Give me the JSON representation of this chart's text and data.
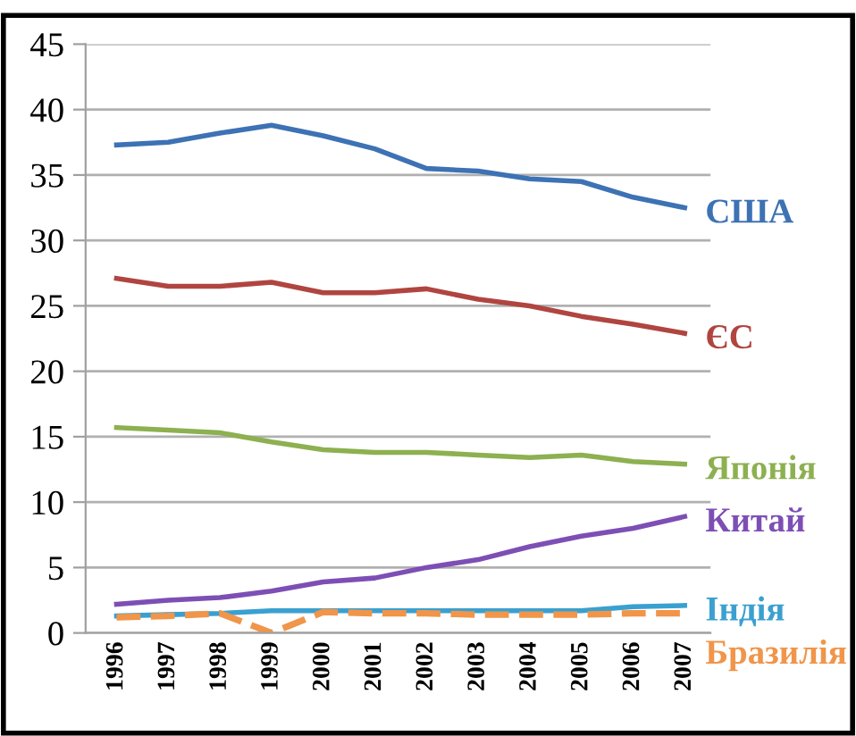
{
  "chart_data": {
    "type": "line",
    "categories": [
      "1996",
      "1997",
      "1998",
      "1999",
      "2000",
      "2001",
      "2002",
      "2003",
      "2004",
      "2005",
      "2006",
      "2007"
    ],
    "series": [
      {
        "name": "США",
        "color": "#3d72b4",
        "values": [
          37.3,
          37.5,
          38.2,
          38.8,
          38.0,
          37.0,
          35.5,
          35.3,
          34.7,
          34.5,
          33.3,
          32.5
        ]
      },
      {
        "name": "ЄС",
        "color": "#b04540",
        "values": [
          27.1,
          26.5,
          26.5,
          26.8,
          26.0,
          26.0,
          26.3,
          25.5,
          25.0,
          24.2,
          23.6,
          22.9
        ]
      },
      {
        "name": "Японія",
        "color": "#8db050",
        "values": [
          15.7,
          15.5,
          15.3,
          14.6,
          14.0,
          13.8,
          13.8,
          13.6,
          13.4,
          13.6,
          13.1,
          12.9
        ]
      },
      {
        "name": "Китай",
        "color": "#7d4fb5",
        "values": [
          2.2,
          2.5,
          2.7,
          3.2,
          3.9,
          4.2,
          5.0,
          5.6,
          6.6,
          7.4,
          8.0,
          8.9
        ]
      },
      {
        "name": "Індія",
        "color": "#3aa0d0",
        "values": [
          1.3,
          1.4,
          1.5,
          1.7,
          1.7,
          1.7,
          1.7,
          1.7,
          1.7,
          1.7,
          2.0,
          2.1
        ]
      },
      {
        "name": "Бразилія",
        "color": "#f0954a",
        "line_style": "dashed",
        "values": [
          1.2,
          1.3,
          1.5,
          0.0,
          1.6,
          1.5,
          1.5,
          1.4,
          1.4,
          1.4,
          1.5,
          1.5
        ]
      }
    ],
    "ylim": [
      0,
      45
    ],
    "yticks": [
      0,
      5,
      10,
      15,
      20,
      25,
      30,
      35,
      40,
      45
    ],
    "grid": "y",
    "legend": false,
    "marker": "none",
    "line_style": "solid"
  }
}
